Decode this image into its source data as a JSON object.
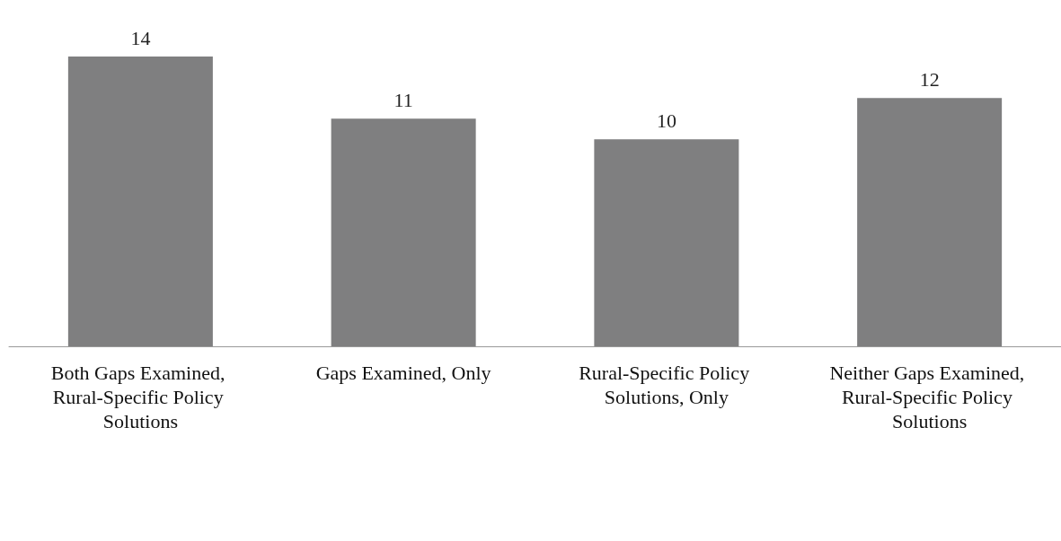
{
  "chart_data": {
    "type": "bar",
    "categories": [
      "Both Gaps Examined, Rural-Specific Policy Solutions",
      "Gaps Examined, Only",
      "Rural-Specific Policy Solutions, Only",
      "Neither Gaps Examined, Rural-Specific Policy Solutions"
    ],
    "values": [
      14,
      11,
      10,
      12
    ],
    "color": "#7f7f80",
    "data_labels": true
  }
}
